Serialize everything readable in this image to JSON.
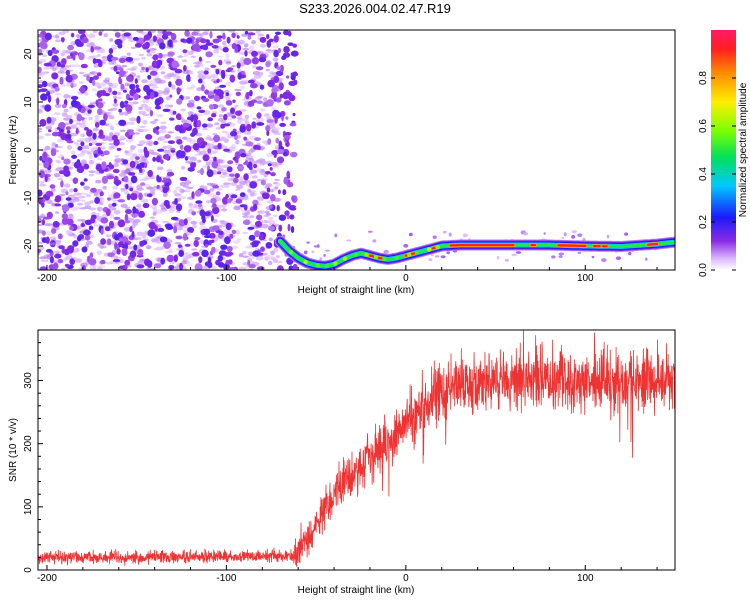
{
  "title": "S233.2026.004.02.47.R19",
  "chart_data": [
    {
      "type": "heatmap",
      "xlabel": "Height of straight line (km)",
      "ylabel": "Frequency (Hz)",
      "xlim": [
        -205,
        150
      ],
      "ylim": [
        -25,
        25
      ],
      "xticks": [
        -200,
        -100,
        0,
        100
      ],
      "xtick_labels": [
        "-200",
        "-100",
        "0",
        "100"
      ],
      "yticks": [
        20,
        10,
        0,
        -10,
        -20
      ],
      "ytick_labels": [
        "20",
        "10",
        "0",
        "-10",
        "-20"
      ],
      "colorbar": {
        "label": "Normalized spectral amplitude",
        "range": [
          0,
          1
        ],
        "ticks": [
          0.0,
          0.2,
          0.4,
          0.6,
          0.8
        ],
        "tick_labels": [
          "0.0",
          "0.2",
          "0.4",
          "0.6",
          "0.8"
        ]
      },
      "ridge": {
        "x": [
          -70,
          -65,
          -60,
          -55,
          -50,
          -45,
          -40,
          -35,
          -30,
          -25,
          -20,
          -15,
          -10,
          -5,
          0,
          5,
          10,
          15,
          20,
          30,
          40,
          60,
          80,
          100,
          120,
          140,
          150
        ],
        "y": [
          -19,
          -21,
          -22.5,
          -23.5,
          -24,
          -24.2,
          -23.8,
          -22.8,
          -22,
          -21.5,
          -22,
          -22.5,
          -22.8,
          -22.5,
          -22,
          -21.5,
          -21,
          -20.5,
          -20,
          -19.8,
          -19.8,
          -19.8,
          -19.8,
          -20,
          -20.1,
          -19.6,
          -19.2
        ]
      },
      "noise_x_range": [
        -205,
        -70
      ]
    },
    {
      "type": "line",
      "xlabel": "Height of straight line (km)",
      "ylabel": "SNR (10 * v/v)",
      "xlim": [
        -205,
        150
      ],
      "ylim": [
        0,
        380
      ],
      "xticks": [
        -200,
        -100,
        0,
        100
      ],
      "xtick_labels": [
        "-200",
        "-100",
        "0",
        "100"
      ],
      "yticks": [
        0,
        100,
        200,
        300
      ],
      "ytick_labels": [
        "0",
        "100",
        "200",
        "300"
      ],
      "color": "#ee3333",
      "trend": {
        "x": [
          -205,
          -62,
          -55,
          -45,
          -35,
          -25,
          -15,
          -5,
          5,
          15,
          25,
          35,
          60,
          100,
          150
        ],
        "y": [
          20,
          22,
          50,
          95,
          140,
          165,
          190,
          215,
          245,
          275,
          290,
          295,
          300,
          298,
          300
        ]
      }
    }
  ]
}
